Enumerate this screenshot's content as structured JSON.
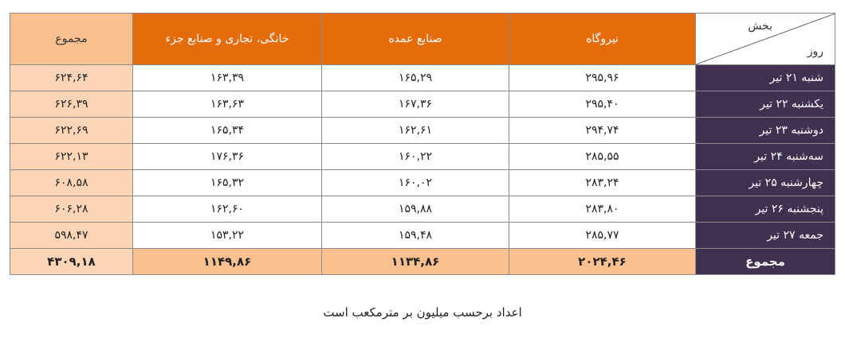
{
  "table": {
    "corner": {
      "column": "بخش",
      "row": "روز"
    },
    "header": [
      "نیروگاه",
      "صنایع عمده",
      "خانگی، تجاری و صنایع جزء",
      "مجموع"
    ],
    "rows": [
      [
        "شنبه ۲۱ تیر",
        "۲۹۵,۹۶",
        "۱۶۵,۲۹",
        "۱۶۳,۳۹",
        "۶۲۴,۶۴"
      ],
      [
        "یکشنبه ۲۲ تیر",
        "۲۹۵,۴۰",
        "۱۶۷,۳۶",
        "۱۶۳,۶۳",
        "۶۲۶,۳۹"
      ],
      [
        "دوشنبه ۲۳ تیر",
        "۲۹۴,۷۴",
        "۱۶۲,۶۱",
        "۱۶۵,۳۴",
        "۶۲۲,۶۹"
      ],
      [
        "سه‌شنبه ۲۴ تیر",
        "۲۸۵,۵۵",
        "۱۶۰,۲۲",
        "۱۷۶,۳۶",
        "۶۲۲,۱۳"
      ],
      [
        "چهارشنبه ۲۵ تیر",
        "۲۸۳,۲۴",
        "۱۶۰,۰۲",
        "۱۶۵,۳۲",
        "۶۰۸,۵۸"
      ],
      [
        "پنجشنبه ۲۶ تیر",
        "۲۸۳,۸۰",
        "۱۵۹,۸۸",
        "۱۶۲,۶۰",
        "۶۰۶,۲۸"
      ],
      [
        "جمعه ۲۷ تیر",
        "۲۸۵,۷۷",
        "۱۵۹,۴۸",
        "۱۵۳,۲۲",
        "۵۹۸,۴۷"
      ]
    ],
    "total": [
      "مجموع",
      "۲۰۲۴,۴۶",
      "۱۱۳۴,۸۶",
      "۱۱۴۹,۸۶",
      "۴۳۰۹,۱۸"
    ]
  },
  "note": "اعداد برحسب میلیون بر مترمکعب است"
}
